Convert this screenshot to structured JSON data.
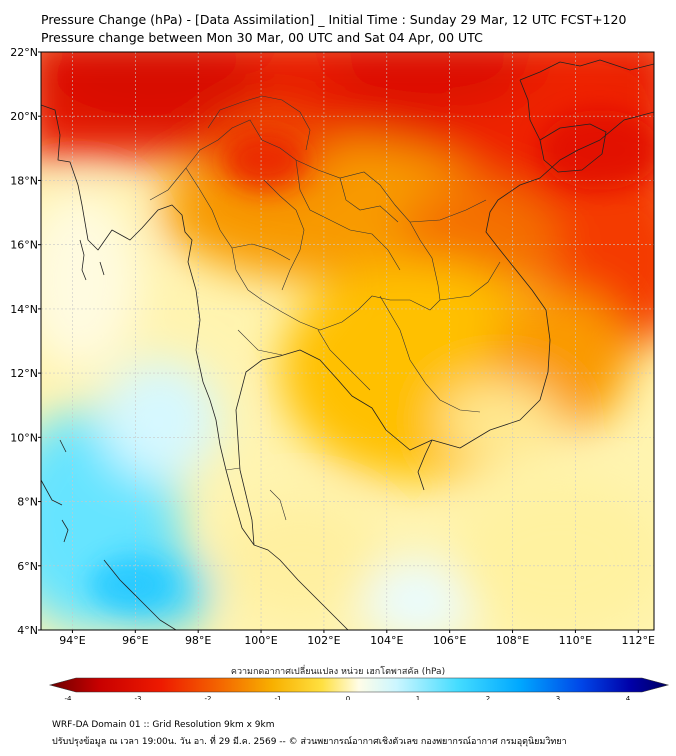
{
  "title_line1": "Pressure Change (hPa) - [Data Assimilation] _ Initial Time : Sunday 29 Mar, 12 UTC FCST+120",
  "title_line2": "Pressure change between Mon 30 Mar, 00 UTC and Sat 04 Apr, 00 UTC",
  "map": {
    "lon_range": [
      93,
      112.5
    ],
    "lat_range": [
      4,
      22
    ],
    "lon_ticks": [
      "94°E",
      "96°E",
      "98°E",
      "100°E",
      "102°E",
      "104°E",
      "106°E",
      "108°E",
      "110°E",
      "112°E"
    ],
    "lat_ticks": [
      "22°N",
      "20°N",
      "18°N",
      "16°N",
      "14°N",
      "12°N",
      "10°N",
      "8°N",
      "6°N",
      "4°N"
    ],
    "lon_tick_values": [
      94,
      96,
      98,
      100,
      102,
      104,
      106,
      108,
      110,
      112
    ],
    "lat_tick_values": [
      22,
      20,
      18,
      16,
      14,
      12,
      10,
      8,
      6,
      4
    ],
    "grid": true
  },
  "colorbar": {
    "title": "ความกดอากาศเปลี่ยนแปลง หน่วย เฮกโตพาสคัล (hPa)",
    "range": [
      -4,
      4
    ],
    "tick_labels": [
      "-4",
      "-3",
      "-2",
      "-1",
      "0",
      "1",
      "2",
      "3",
      "4"
    ],
    "tick_values": [
      -4,
      -3,
      -2,
      -1,
      0,
      1,
      2,
      3,
      4
    ]
  },
  "footer_line1": "WRF-DA Domain 01 :: Grid Resolution 9km x 9km",
  "footer_line2": "ปรับปรุงข้อมูล ณ เวลา 19:00น. วัน อา. ที่ 29 มี.ค. 2569 -- © ส่วนพยากรณ์อากาศเชิงตัวเลข กองพยากรณ์อากาศ กรมอุตุนิยมวิทยา"
}
